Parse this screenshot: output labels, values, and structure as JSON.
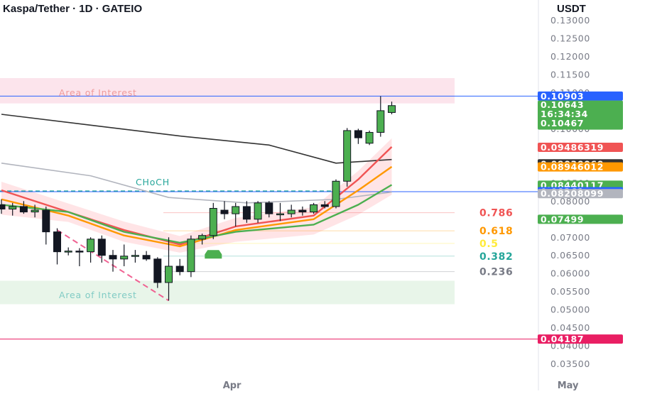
{
  "header": {
    "title": "Kaspa/Tether · 1D · GATEIO"
  },
  "axis": {
    "currency_label": "USDT",
    "price_ticks": [
      "0.13000",
      "0.12500",
      "0.12000",
      "0.11500",
      "0.11000",
      "0.10500",
      "0.10000",
      "0.09500",
      "0.09000",
      "0.08500",
      "0.08000",
      "0.07500",
      "0.07000",
      "0.06500",
      "0.06000",
      "0.05500",
      "0.05000",
      "0.04500",
      "0.04000",
      "0.03500"
    ],
    "time_ticks": [
      {
        "label": "Apr",
        "date": "2024-04-01"
      },
      {
        "label": "May",
        "date": "2024-05-01"
      }
    ]
  },
  "price_badges": [
    {
      "text": "0.10903",
      "value": 0.10903,
      "color": "#2962ff"
    },
    {
      "text": "0.10643",
      "value": 0.10643,
      "color": "#4caf50",
      "countdown": "16:34:34",
      "low_text": "0.10467"
    },
    {
      "text": "0.09486319",
      "value": 0.09486319,
      "color": "#f05454"
    },
    {
      "text": "0.09030060",
      "value": 0.0903006,
      "color": "#333333"
    },
    {
      "text": "0.08946012",
      "value": 0.08946012,
      "color": "#ff9800"
    },
    {
      "text": "0.08440117",
      "value": 0.08440117,
      "color": "#4caf50"
    },
    {
      "text": "0.08261",
      "value": 0.08261,
      "color": "#2962ff"
    },
    {
      "text": "0.08208099",
      "value": 0.08208099,
      "color": "#b2b5be"
    },
    {
      "text": "0.07499",
      "value": 0.07499,
      "color": "#4caf50"
    },
    {
      "text": "0.04187",
      "value": 0.04187,
      "color": "#e91e63"
    }
  ],
  "annotations": {
    "zone_top_label": "Area of Interest",
    "zone_bottom_label": "Area of Interest",
    "choch_label": "CHoCH"
  },
  "fib_levels": [
    {
      "label": "0.786",
      "value": 0.0768,
      "color": "#f05454"
    },
    {
      "label": "0.618",
      "value": 0.0718,
      "color": "#ff9800"
    },
    {
      "label": "0.5",
      "value": 0.0683,
      "color": "#ffeb3b"
    },
    {
      "label": "0.382",
      "value": 0.0648,
      "color": "#26a69a"
    },
    {
      "label": "0.236",
      "value": 0.0605,
      "color": "#787b86"
    }
  ],
  "chart_data": {
    "type": "candlestick",
    "title": "Kaspa/Tether · 1D · GATEIO",
    "ylabel": "USDT",
    "ylim": [
      0.0325,
      0.1325
    ],
    "y_scale": "linear",
    "x_range": [
      "2024-03-11",
      "2024-05-10"
    ],
    "candles": [
      {
        "date": "2024-03-11",
        "open": 0.079,
        "high": 0.0805,
        "low": 0.0765,
        "close": 0.0778
      },
      {
        "date": "2024-03-12",
        "open": 0.0778,
        "high": 0.0795,
        "low": 0.076,
        "close": 0.0785
      },
      {
        "date": "2024-03-13",
        "open": 0.0785,
        "high": 0.08,
        "low": 0.0765,
        "close": 0.077
      },
      {
        "date": "2024-03-14",
        "open": 0.077,
        "high": 0.079,
        "low": 0.0755,
        "close": 0.0775
      },
      {
        "date": "2024-03-15",
        "open": 0.0775,
        "high": 0.0785,
        "low": 0.068,
        "close": 0.0715
      },
      {
        "date": "2024-03-16",
        "open": 0.0715,
        "high": 0.0725,
        "low": 0.0625,
        "close": 0.066
      },
      {
        "date": "2024-03-17",
        "open": 0.066,
        "high": 0.0672,
        "low": 0.065,
        "close": 0.0662
      },
      {
        "date": "2024-03-18",
        "open": 0.0662,
        "high": 0.067,
        "low": 0.062,
        "close": 0.066
      },
      {
        "date": "2024-03-19",
        "open": 0.066,
        "high": 0.07,
        "low": 0.063,
        "close": 0.0695
      },
      {
        "date": "2024-03-20",
        "open": 0.0695,
        "high": 0.0705,
        "low": 0.063,
        "close": 0.065
      },
      {
        "date": "2024-03-21",
        "open": 0.065,
        "high": 0.0665,
        "low": 0.0605,
        "close": 0.064
      },
      {
        "date": "2024-03-22",
        "open": 0.064,
        "high": 0.068,
        "low": 0.062,
        "close": 0.0648
      },
      {
        "date": "2024-03-23",
        "open": 0.0648,
        "high": 0.0665,
        "low": 0.063,
        "close": 0.065
      },
      {
        "date": "2024-03-24",
        "open": 0.065,
        "high": 0.0662,
        "low": 0.0635,
        "close": 0.064
      },
      {
        "date": "2024-03-25",
        "open": 0.064,
        "high": 0.0645,
        "low": 0.056,
        "close": 0.0575
      },
      {
        "date": "2024-03-26",
        "open": 0.0575,
        "high": 0.07,
        "low": 0.0525,
        "close": 0.062
      },
      {
        "date": "2024-03-27",
        "open": 0.062,
        "high": 0.064,
        "low": 0.0595,
        "close": 0.0605
      },
      {
        "date": "2024-03-28",
        "open": 0.0605,
        "high": 0.0705,
        "low": 0.059,
        "close": 0.0695
      },
      {
        "date": "2024-03-29",
        "open": 0.0695,
        "high": 0.071,
        "low": 0.068,
        "close": 0.0705
      },
      {
        "date": "2024-03-30",
        "open": 0.0705,
        "high": 0.0795,
        "low": 0.0695,
        "close": 0.078
      },
      {
        "date": "2024-03-31",
        "open": 0.0775,
        "high": 0.08,
        "low": 0.075,
        "close": 0.0765
      },
      {
        "date": "2024-04-01",
        "open": 0.0765,
        "high": 0.0795,
        "low": 0.073,
        "close": 0.0785
      },
      {
        "date": "2024-04-02",
        "open": 0.0785,
        "high": 0.08,
        "low": 0.074,
        "close": 0.075
      },
      {
        "date": "2024-04-03",
        "open": 0.075,
        "high": 0.08,
        "low": 0.074,
        "close": 0.0795
      },
      {
        "date": "2024-04-04",
        "open": 0.0795,
        "high": 0.08,
        "low": 0.0755,
        "close": 0.0765
      },
      {
        "date": "2024-04-05",
        "open": 0.0765,
        "high": 0.0795,
        "low": 0.0745,
        "close": 0.0765
      },
      {
        "date": "2024-04-06",
        "open": 0.0765,
        "high": 0.079,
        "low": 0.0755,
        "close": 0.0775
      },
      {
        "date": "2024-04-07",
        "open": 0.0775,
        "high": 0.0785,
        "low": 0.076,
        "close": 0.077
      },
      {
        "date": "2024-04-08",
        "open": 0.077,
        "high": 0.0795,
        "low": 0.0765,
        "close": 0.079
      },
      {
        "date": "2024-04-09",
        "open": 0.079,
        "high": 0.08,
        "low": 0.078,
        "close": 0.0785
      },
      {
        "date": "2024-04-10",
        "open": 0.0785,
        "high": 0.086,
        "low": 0.078,
        "close": 0.0855
      },
      {
        "date": "2024-04-11",
        "open": 0.0855,
        "high": 0.1002,
        "low": 0.084,
        "close": 0.0995
      },
      {
        "date": "2024-04-12",
        "open": 0.0995,
        "high": 0.1,
        "low": 0.0958,
        "close": 0.0975
      },
      {
        "date": "2024-04-13",
        "open": 0.096,
        "high": 0.0995,
        "low": 0.0955,
        "close": 0.099
      },
      {
        "date": "2024-04-14",
        "open": 0.099,
        "high": 0.109,
        "low": 0.0978,
        "close": 0.105
      },
      {
        "date": "2024-04-15",
        "open": 0.1045,
        "high": 0.1075,
        "low": 0.104,
        "close": 0.1064
      }
    ],
    "moving_averages": [
      {
        "color": "#333333",
        "points": [
          {
            "date": "2024-03-11",
            "value": 0.104
          },
          {
            "date": "2024-03-19",
            "value": 0.101
          },
          {
            "date": "2024-03-27",
            "value": 0.098
          },
          {
            "date": "2024-04-04",
            "value": 0.0955
          },
          {
            "date": "2024-04-10",
            "value": 0.0905
          },
          {
            "date": "2024-04-15",
            "value": 0.0915
          }
        ]
      },
      {
        "color": "#b2b5be",
        "points": [
          {
            "date": "2024-03-11",
            "value": 0.0905
          },
          {
            "date": "2024-03-19",
            "value": 0.087
          },
          {
            "date": "2024-03-26",
            "value": 0.081
          },
          {
            "date": "2024-04-02",
            "value": 0.0795
          },
          {
            "date": "2024-04-10",
            "value": 0.0805
          },
          {
            "date": "2024-04-15",
            "value": 0.0825
          }
        ]
      },
      {
        "color": "#f05454",
        "points": [
          {
            "date": "2024-03-11",
            "value": 0.083
          },
          {
            "date": "2024-03-17",
            "value": 0.077
          },
          {
            "date": "2024-03-22",
            "value": 0.072
          },
          {
            "date": "2024-03-27",
            "value": 0.068
          },
          {
            "date": "2024-04-01",
            "value": 0.073
          },
          {
            "date": "2024-04-08",
            "value": 0.076
          },
          {
            "date": "2024-04-12",
            "value": 0.086
          },
          {
            "date": "2024-04-15",
            "value": 0.095
          }
        ]
      },
      {
        "color": "#ff9800",
        "points": [
          {
            "date": "2024-03-11",
            "value": 0.0805
          },
          {
            "date": "2024-03-17",
            "value": 0.076
          },
          {
            "date": "2024-03-22",
            "value": 0.0705
          },
          {
            "date": "2024-03-27",
            "value": 0.0675
          },
          {
            "date": "2024-04-01",
            "value": 0.072
          },
          {
            "date": "2024-04-08",
            "value": 0.075
          },
          {
            "date": "2024-04-12",
            "value": 0.083
          },
          {
            "date": "2024-04-15",
            "value": 0.0895
          }
        ]
      },
      {
        "color": "#4caf50",
        "points": [
          {
            "date": "2024-03-11",
            "value": 0.079
          },
          {
            "date": "2024-03-17",
            "value": 0.077
          },
          {
            "date": "2024-03-22",
            "value": 0.0715
          },
          {
            "date": "2024-03-27",
            "value": 0.0685
          },
          {
            "date": "2024-04-01",
            "value": 0.0715
          },
          {
            "date": "2024-04-08",
            "value": 0.0735
          },
          {
            "date": "2024-04-12",
            "value": 0.079
          },
          {
            "date": "2024-04-15",
            "value": 0.0845
          }
        ]
      }
    ],
    "zones": [
      {
        "label": "Area of Interest",
        "from": 0.107,
        "to": 0.114,
        "color": "#fce4ec"
      },
      {
        "label": "Area of Interest",
        "from": 0.0515,
        "to": 0.058,
        "color": "#e8f5e9"
      }
    ],
    "horizontal_lines": [
      {
        "value": 0.10903,
        "color": "#2962ff"
      },
      {
        "value": 0.08261,
        "color": "#2962ff"
      },
      {
        "value": 0.04187,
        "color": "#e91e63"
      }
    ],
    "choch": {
      "label": "CHoCH",
      "value": 0.0828,
      "from": "2024-03-11",
      "to": "2024-04-10"
    },
    "trendline": {
      "from": {
        "date": "2024-03-16",
        "value": 0.072
      },
      "to": {
        "date": "2024-03-26",
        "value": 0.0525
      }
    },
    "grid": false
  }
}
